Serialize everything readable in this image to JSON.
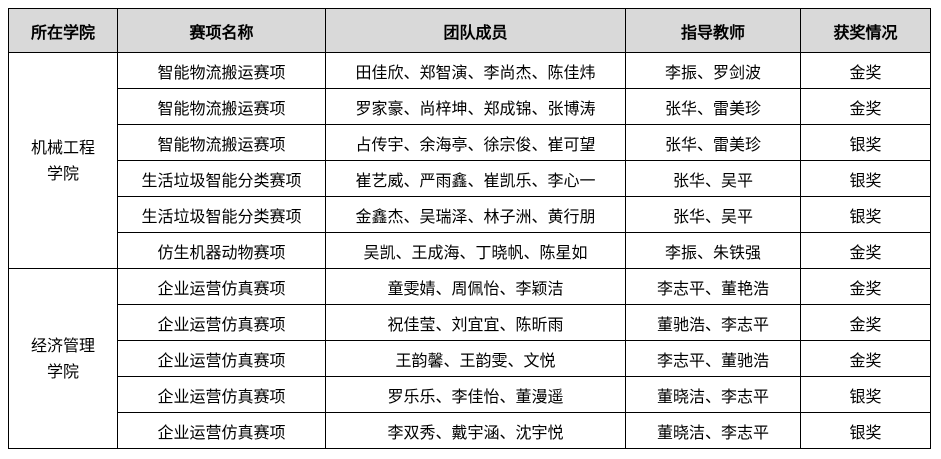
{
  "headers": [
    "所在学院",
    "赛项名称",
    "团队成员",
    "指导教师",
    "获奖情况"
  ],
  "groups": [
    {
      "college": [
        "机械工程",
        "学院"
      ],
      "rows": [
        {
          "event": "智能物流搬运赛项",
          "members": "田佳欣、郑智演、李尚杰、陈佳炜",
          "advisors": "李振、罗剑波",
          "award": "金奖"
        },
        {
          "event": "智能物流搬运赛项",
          "members": "罗家豪、尚梓坤、郑成锦、张博涛",
          "advisors": "张华、雷美珍",
          "award": "金奖"
        },
        {
          "event": "智能物流搬运赛项",
          "members": "占传宇、余海亭、徐宗俊、崔可望",
          "advisors": "张华、雷美珍",
          "award": "银奖"
        },
        {
          "event": "生活垃圾智能分类赛项",
          "members": "崔艺威、严雨鑫、崔凯乐、李心一",
          "advisors": "张华、吴平",
          "award": "银奖"
        },
        {
          "event": "生活垃圾智能分类赛项",
          "members": "金鑫杰、吴瑞泽、林子洲、黄行朋",
          "advisors": "张华、吴平",
          "award": "银奖"
        },
        {
          "event": "仿生机器动物赛项",
          "members": "吴凯、王成海、丁晓帆、陈星如",
          "advisors": "李振、朱铁强",
          "award": "金奖"
        }
      ]
    },
    {
      "college": [
        "经济管理",
        "学院"
      ],
      "rows": [
        {
          "event": "企业运营仿真赛项",
          "members": "童雯婧、周佩怡、李颖洁",
          "advisors": "李志平、董艳浩",
          "award": "金奖"
        },
        {
          "event": "企业运营仿真赛项",
          "members": "祝佳莹、刘宜宜、陈昕雨",
          "advisors": "董驰浩、李志平",
          "award": "金奖"
        },
        {
          "event": "企业运营仿真赛项",
          "members": "王韵馨、王韵雯、文悦",
          "advisors": "李志平、董驰浩",
          "award": "金奖"
        },
        {
          "event": "企业运营仿真赛项",
          "members": "罗乐乐、李佳怡、董漫遥",
          "advisors": "董晓洁、李志平",
          "award": "银奖"
        },
        {
          "event": "企业运营仿真赛项",
          "members": "李双秀、戴宇涵、沈宇悦",
          "advisors": "董晓洁、李志平",
          "award": "银奖"
        }
      ]
    }
  ]
}
